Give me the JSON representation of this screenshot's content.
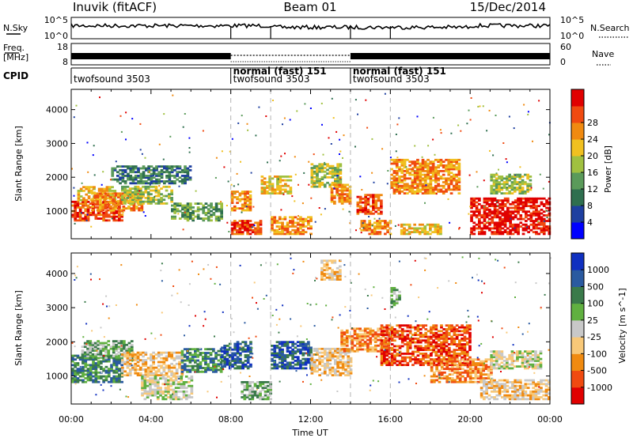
{
  "header": {
    "site": "Inuvik (fitACF)",
    "beam": "Beam 01",
    "date": "15/Dec/2014"
  },
  "nsky_panel": {
    "left_label": "N.Sky",
    "left_ticks": [
      "10^5",
      "10^0"
    ],
    "right_label": "N.Search",
    "right_ticks": [
      "10^5",
      "10^0"
    ]
  },
  "freq_panel": {
    "left_label_top": "Freq.",
    "left_label_unit": "[MHz]",
    "left_ticks": [
      "18",
      "8"
    ],
    "right_label": "Nave",
    "right_ticks": [
      "60",
      "0"
    ]
  },
  "cpid_panel": {
    "label": "CPID",
    "segments": [
      {
        "start_hour": 0,
        "mode": "",
        "program": "twofsound 3503"
      },
      {
        "start_hour": 8,
        "mode": "normal (fast) 151",
        "program": "twofsound 3503"
      },
      {
        "start_hour": 14,
        "mode": "normal (fast) 151",
        "program": "twofsound 3503"
      }
    ]
  },
  "mode_change_hours": [
    8,
    10,
    14,
    16
  ],
  "x_axis": {
    "label": "Time UT",
    "ticks": [
      "00:00",
      "04:00",
      "08:00",
      "12:00",
      "16:00",
      "20:00",
      "00:00"
    ]
  },
  "chart_data": [
    {
      "type": "heatmap",
      "quantity": "Power",
      "xlabel": "Time UT",
      "ylabel": "Slant Range [km]",
      "xlim": [
        0,
        24
      ],
      "ylim": [
        180,
        4600
      ],
      "yticks": [
        1000,
        2000,
        3000,
        4000
      ],
      "colorbar": {
        "label": "Power [dB]",
        "ticks": [
          "4",
          "8",
          "12",
          "16",
          "20",
          "24",
          "28"
        ],
        "colors": [
          "#0000ff",
          "#1e3fa0",
          "#2f6f4f",
          "#5a9a5a",
          "#a0c040",
          "#f0c020",
          "#f08a10",
          "#f04a10",
          "#e00000"
        ]
      },
      "echo_regions": [
        {
          "t0": 0.0,
          "t1": 2.5,
          "r0": 700,
          "r1": 1300,
          "level": 7
        },
        {
          "t0": 0.3,
          "t1": 2.2,
          "r0": 1300,
          "r1": 1700,
          "level": 5
        },
        {
          "t0": 1.0,
          "t1": 3.5,
          "r0": 1000,
          "r1": 1500,
          "level": 6
        },
        {
          "t0": 2.5,
          "t1": 5.0,
          "r0": 1200,
          "r1": 1700,
          "level": 4
        },
        {
          "t0": 2.0,
          "t1": 6.0,
          "r0": 1800,
          "r1": 2300,
          "level": 2
        },
        {
          "t0": 5.0,
          "t1": 7.5,
          "r0": 700,
          "r1": 1200,
          "level": 3
        },
        {
          "t0": 8.0,
          "t1": 9.5,
          "r0": 300,
          "r1": 700,
          "level": 7
        },
        {
          "t0": 8.0,
          "t1": 9.0,
          "r0": 1000,
          "r1": 1600,
          "level": 6
        },
        {
          "t0": 9.5,
          "t1": 11.0,
          "r0": 1500,
          "r1": 2000,
          "level": 5
        },
        {
          "t0": 10.0,
          "t1": 12.0,
          "r0": 300,
          "r1": 800,
          "level": 6
        },
        {
          "t0": 12.0,
          "t1": 13.5,
          "r0": 1700,
          "r1": 2400,
          "level": 4
        },
        {
          "t0": 13.0,
          "t1": 14.0,
          "r0": 1200,
          "r1": 1800,
          "level": 6
        },
        {
          "t0": 14.3,
          "t1": 15.5,
          "r0": 900,
          "r1": 1500,
          "level": 7
        },
        {
          "t0": 14.5,
          "t1": 16.0,
          "r0": 300,
          "r1": 700,
          "level": 6
        },
        {
          "t0": 16.0,
          "t1": 19.5,
          "r0": 1500,
          "r1": 2500,
          "level": 6
        },
        {
          "t0": 16.5,
          "t1": 18.5,
          "r0": 300,
          "r1": 600,
          "level": 5
        },
        {
          "t0": 20.0,
          "t1": 24.0,
          "r0": 300,
          "r1": 1400,
          "level": 8
        },
        {
          "t0": 21.0,
          "t1": 23.0,
          "r0": 1500,
          "r1": 2100,
          "level": 4
        }
      ]
    },
    {
      "type": "heatmap",
      "quantity": "Velocity",
      "xlabel": "Time UT",
      "ylabel": "Slant Range [km]",
      "xlim": [
        0,
        24
      ],
      "ylim": [
        180,
        4600
      ],
      "yticks": [
        1000,
        2000,
        3000,
        4000
      ],
      "colorbar": {
        "label": "Velocity [m s^-1]",
        "ticks": [
          "-1000",
          "-500",
          "-100",
          "-25",
          "25",
          "100",
          "500",
          "1000"
        ],
        "colors": [
          "#e00000",
          "#f04a10",
          "#f08a10",
          "#f8c878",
          "#c8c8c8",
          "#60b040",
          "#3a7a4a",
          "#2a5aa0",
          "#1030c0"
        ]
      },
      "echo_regions": [
        {
          "t0": 0.0,
          "t1": 2.5,
          "r0": 800,
          "r1": 1600,
          "level": 6
        },
        {
          "t0": 0.5,
          "t1": 3.0,
          "r0": 1500,
          "r1": 2000,
          "level": 5
        },
        {
          "t0": 2.5,
          "t1": 5.5,
          "r0": 1000,
          "r1": 1700,
          "level": 3
        },
        {
          "t0": 3.5,
          "t1": 6.0,
          "r0": 300,
          "r1": 1000,
          "level": 4
        },
        {
          "t0": 5.5,
          "t1": 7.5,
          "r0": 1100,
          "r1": 1800,
          "level": 6
        },
        {
          "t0": 7.5,
          "t1": 9.0,
          "r0": 1200,
          "r1": 2000,
          "level": 7
        },
        {
          "t0": 8.5,
          "t1": 10.0,
          "r0": 300,
          "r1": 800,
          "level": 5
        },
        {
          "t0": 10.0,
          "t1": 12.0,
          "r0": 1200,
          "r1": 2000,
          "level": 7
        },
        {
          "t0": 12.0,
          "t1": 14.0,
          "r0": 1000,
          "r1": 1800,
          "level": 3
        },
        {
          "t0": 13.5,
          "t1": 16.0,
          "r0": 1700,
          "r1": 2400,
          "level": 2
        },
        {
          "t0": 15.5,
          "t1": 20.0,
          "r0": 1300,
          "r1": 2500,
          "level": 1
        },
        {
          "t0": 18.0,
          "t1": 21.0,
          "r0": 800,
          "r1": 1500,
          "level": 2
        },
        {
          "t0": 20.5,
          "t1": 24.0,
          "r0": 300,
          "r1": 900,
          "level": 3
        },
        {
          "t0": 21.0,
          "t1": 23.5,
          "r0": 1200,
          "r1": 1700,
          "level": 4
        },
        {
          "t0": 12.5,
          "t1": 13.5,
          "r0": 3800,
          "r1": 4400,
          "level": 3
        },
        {
          "t0": 16.0,
          "t1": 16.5,
          "r0": 3000,
          "r1": 3600,
          "level": 5
        }
      ]
    }
  ],
  "colors": {
    "dashed_marker": "#b4b4b4",
    "trace": "#000000",
    "frame": "#000000",
    "background": "#ffffff"
  }
}
